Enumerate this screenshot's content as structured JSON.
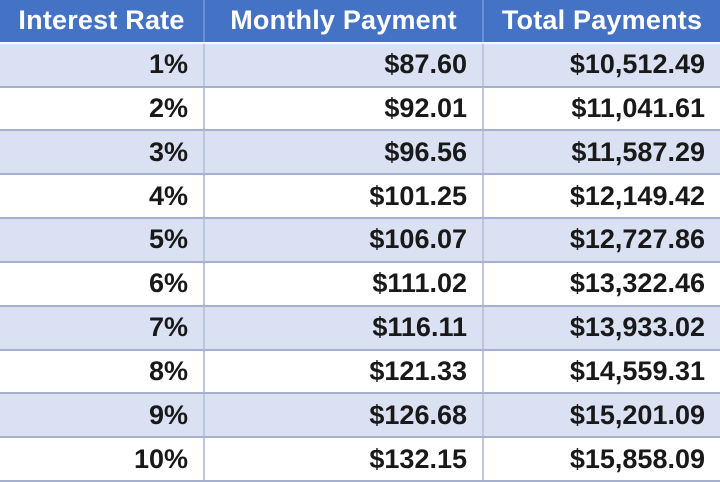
{
  "colors": {
    "header_bg": "#4472C4",
    "header_text": "#FFFFFF",
    "band_bg": "#D9E1F2",
    "row_bg": "#FFFFFF",
    "h_border": "#A4B0CE",
    "v_border": "#BCC7E0",
    "header_v_border": "#6F8ED3",
    "header_bottom_border": "#F5F8FC",
    "cell_text": "#191919"
  },
  "chart_data": {
    "type": "table",
    "title": "",
    "columns": [
      "Interest Rate",
      "Monthly Payment",
      "Total Payments"
    ],
    "rows": [
      [
        "1%",
        "$87.60",
        "$10,512.49"
      ],
      [
        "2%",
        "$92.01",
        "$11,041.61"
      ],
      [
        "3%",
        "$96.56",
        "$11,587.29"
      ],
      [
        "4%",
        "$101.25",
        "$12,149.42"
      ],
      [
        "5%",
        "$106.07",
        "$12,727.86"
      ],
      [
        "6%",
        "$111.02",
        "$13,322.46"
      ],
      [
        "7%",
        "$116.11",
        "$13,933.02"
      ],
      [
        "8%",
        "$121.33",
        "$14,559.31"
      ],
      [
        "9%",
        "$126.68",
        "$15,201.09"
      ],
      [
        "10%",
        "$132.15",
        "$15,858.09"
      ]
    ],
    "layout": {
      "header_style": "solid blue, white bold centered text",
      "banding": "odd data rows light blue, even data rows white",
      "value_alignment": "right"
    }
  }
}
